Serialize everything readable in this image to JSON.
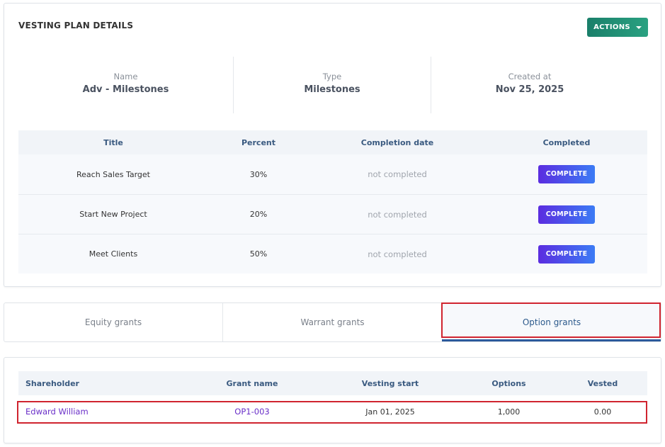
{
  "vesting_plan": {
    "title": "VESTING PLAN DETAILS",
    "actions_label": "ACTIONS",
    "info": [
      {
        "label": "Name",
        "value": "Adv - Milestones"
      },
      {
        "label": "Type",
        "value": "Milestones"
      },
      {
        "label": "Created at",
        "value": "Nov 25, 2025"
      }
    ],
    "milestones_table": {
      "headers": [
        "Title",
        "Percent",
        "Completion date",
        "Completed"
      ],
      "rows": [
        {
          "title": "Reach Sales Target",
          "percent": "30%",
          "completion_date": "not completed",
          "action": "COMPLETE"
        },
        {
          "title": "Start New Project",
          "percent": "20%",
          "completion_date": "not completed",
          "action": "COMPLETE"
        },
        {
          "title": "Meet Clients",
          "percent": "50%",
          "completion_date": "not completed",
          "action": "COMPLETE"
        }
      ]
    }
  },
  "tabs": [
    {
      "label": "Equity grants",
      "active": false
    },
    {
      "label": "Warrant grants",
      "active": false
    },
    {
      "label": "Option grants",
      "active": true
    }
  ],
  "grants_table": {
    "headers": [
      "Shareholder",
      "Grant name",
      "Vesting start",
      "Options",
      "Vested"
    ],
    "rows": [
      {
        "shareholder": "Edward William",
        "grant_name": "OP1-003",
        "vesting_start": "Jan 01, 2025",
        "options": "1,000",
        "vested": "0.00"
      }
    ]
  },
  "colors": {
    "accent_green": "#1a7f6a",
    "complete_button": "#5b2de0",
    "highlight_red": "#d0242f",
    "link_purple": "#6a2fc8"
  }
}
